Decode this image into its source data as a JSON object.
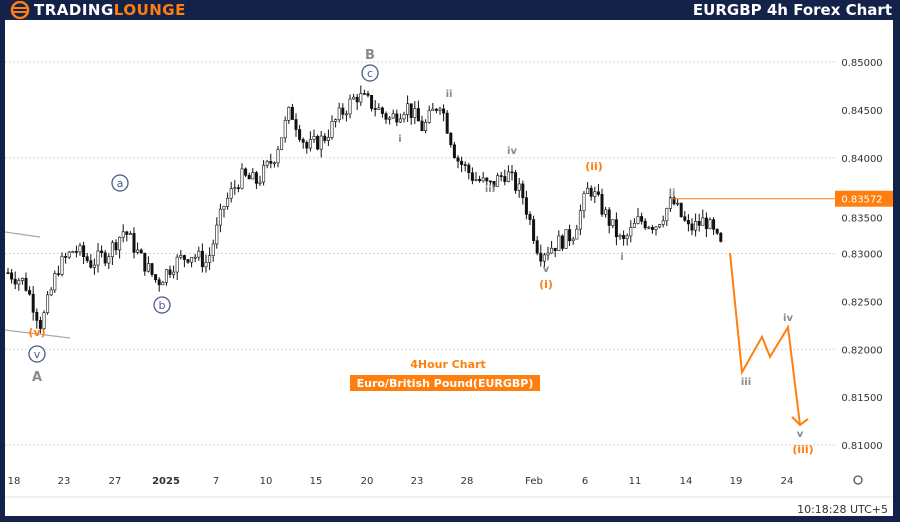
{
  "header": {
    "logo_part1": "TRADING",
    "logo_part2": "LOUNGE",
    "title": "EURGBP 4h Forex Chart"
  },
  "footer": {
    "time": "10:18:28 UTC+5"
  },
  "colors": {
    "accent": "#ff7f0e",
    "wave": "#4a5a8a",
    "gray_label": "#8a8a8a",
    "frame": "#14224a"
  },
  "chart_data": {
    "type": "candlestick",
    "title": "4Hour Chart",
    "subtitle": "Euro/British Pound(EURGBP)",
    "y_ticks": [
      "0.85000",
      "0.84500",
      "0.84000",
      "0.83500",
      "0.83000",
      "0.82500",
      "0.82000",
      "0.81500",
      "0.81000"
    ],
    "ylim": [
      0.8079,
      0.8545
    ],
    "x_ticks": [
      "18",
      "23",
      "27",
      "2025",
      "7",
      "10",
      "15",
      "20",
      "23",
      "28",
      "Feb",
      "6",
      "11",
      "14",
      "19",
      "24"
    ],
    "current_price": "0.83572",
    "approx_closes": [
      0.828,
      0.827,
      0.8225,
      0.8285,
      0.8305,
      0.829,
      0.83,
      0.8325,
      0.8295,
      0.827,
      0.829,
      0.83,
      0.829,
      0.835,
      0.838,
      0.8375,
      0.84,
      0.845,
      0.841,
      0.842,
      0.8445,
      0.8465,
      0.8455,
      0.844,
      0.8455,
      0.843,
      0.846,
      0.84,
      0.838,
      0.837,
      0.8385,
      0.836,
      0.83,
      0.831,
      0.832,
      0.837,
      0.834,
      0.831,
      0.8335,
      0.833,
      0.8355,
      0.8325,
      0.8335,
      0.8305
    ],
    "projection": [
      0.83005,
      0.8176,
      0.8213,
      0.8192,
      0.8223,
      0.8121
    ],
    "wave_labels": [
      {
        "text": "B",
        "style": "gray-big"
      },
      {
        "text": "c",
        "style": "circle"
      },
      {
        "text": "a",
        "style": "circle"
      },
      {
        "text": "b",
        "style": "circle"
      },
      {
        "text": "v",
        "style": "circle"
      },
      {
        "text": "A",
        "style": "gray-big"
      },
      {
        "text": "(v)",
        "style": "orange"
      },
      {
        "text": "i",
        "style": "gray"
      },
      {
        "text": "ii",
        "style": "gray"
      },
      {
        "text": "iii",
        "style": "gray"
      },
      {
        "text": "iv",
        "style": "gray"
      },
      {
        "text": "v",
        "style": "gray"
      },
      {
        "text": "(i)",
        "style": "orange"
      },
      {
        "text": "(ii)",
        "style": "orange"
      },
      {
        "text": "ii",
        "style": "gray"
      },
      {
        "text": "i",
        "style": "gray"
      },
      {
        "text": "iii",
        "style": "gray"
      },
      {
        "text": "iv",
        "style": "gray"
      },
      {
        "text": "v",
        "style": "gray"
      },
      {
        "text": "(iii)",
        "style": "orange"
      }
    ],
    "grid": true
  }
}
